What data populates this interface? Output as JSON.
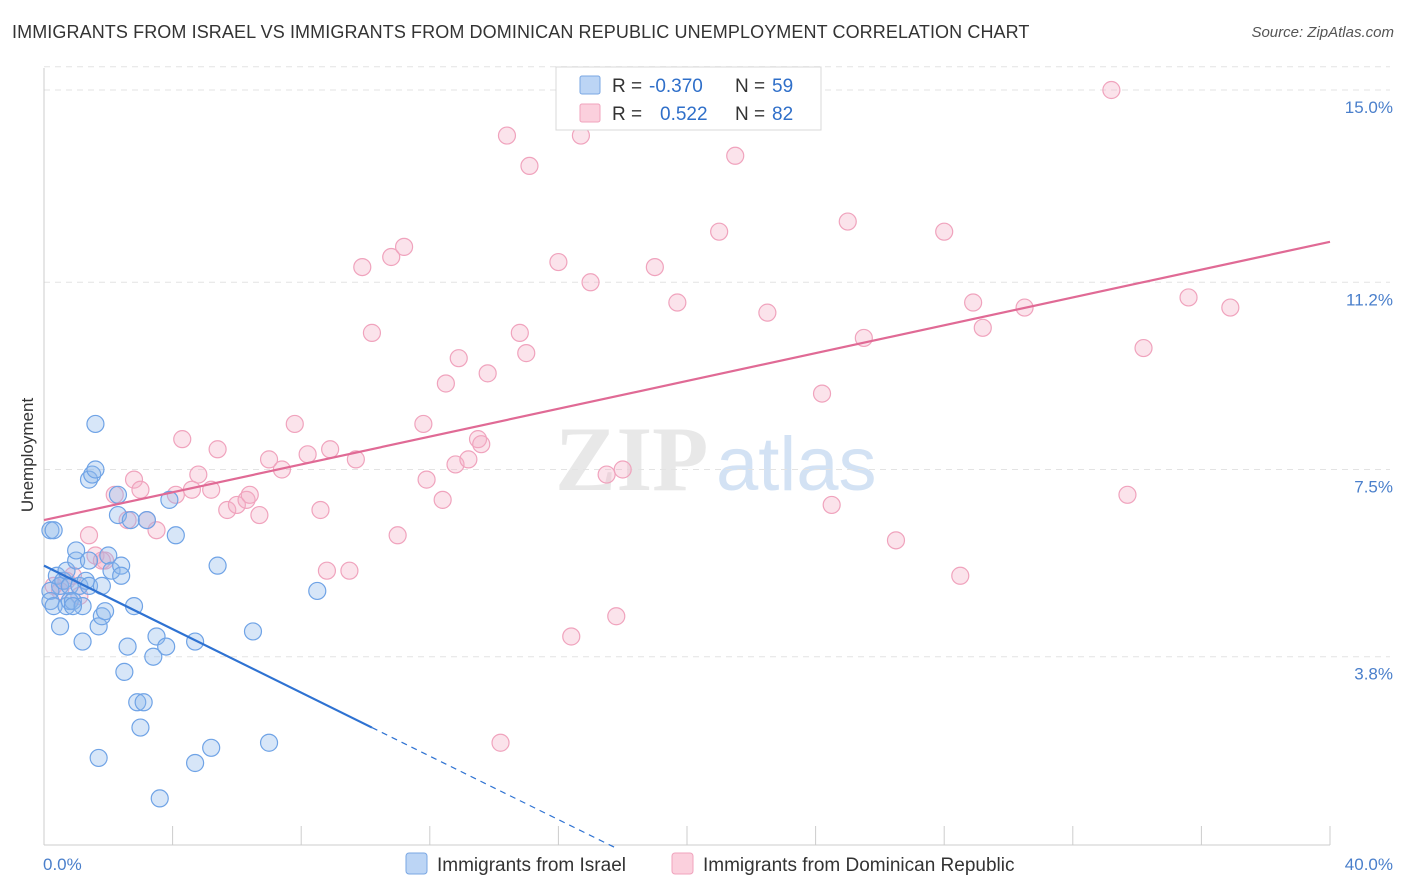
{
  "title": "IMMIGRANTS FROM ISRAEL VS IMMIGRANTS FROM DOMINICAN REPUBLIC UNEMPLOYMENT CORRELATION CHART",
  "source": "Source: ZipAtlas.com",
  "watermark": {
    "zip": "ZIP",
    "atlas": "atlas"
  },
  "legend_top": [
    {
      "r_label": "R = ",
      "r_value": "-0.370",
      "n_label": "N = ",
      "n_value": "59"
    },
    {
      "r_label": "R = ",
      "r_value": "0.522",
      "n_label": "N = ",
      "n_value": "82"
    }
  ],
  "legend_bottom": [
    "Immigrants from Israel",
    "Immigrants from Dominican Republic"
  ],
  "chart_data": {
    "type": "scatter",
    "title": "IMMIGRANTS FROM ISRAEL VS IMMIGRANTS FROM DOMINICAN REPUBLIC UNEMPLOYMENT CORRELATION CHART",
    "xlabel": "",
    "ylabel": "Unemployment",
    "xlim": [
      0,
      40
    ],
    "ylim": [
      0,
      15.5
    ],
    "x_tick_labels": [
      "0.0%",
      "40.0%"
    ],
    "y_ticks": [
      3.8,
      7.5,
      11.2,
      15.0
    ],
    "y_tick_labels": [
      "3.8%",
      "7.5%",
      "11.2%",
      "15.0%"
    ],
    "grid": "horizontal dashed",
    "legend_placement": "top-center and bottom",
    "colors": {
      "israel": "#6fa3e6",
      "israel_line": "#2e72d2",
      "dominican": "#f0a3bd",
      "dominican_line": "#e06a95"
    },
    "series": [
      {
        "name": "Immigrants from Israel",
        "r": -0.37,
        "n": 59,
        "trend": {
          "x0": 0,
          "y0": 5.6,
          "x1": 10.2,
          "y1": 2.4,
          "dashed_to_x": 17.8
        },
        "points": [
          [
            0.2,
            6.3
          ],
          [
            0.3,
            6.3
          ],
          [
            0.4,
            5.4
          ],
          [
            0.5,
            5.2
          ],
          [
            0.2,
            5.1
          ],
          [
            0.2,
            4.9
          ],
          [
            0.3,
            4.8
          ],
          [
            0.5,
            4.4
          ],
          [
            0.6,
            5.3
          ],
          [
            0.7,
            5.5
          ],
          [
            0.7,
            4.8
          ],
          [
            0.8,
            4.9
          ],
          [
            0.8,
            5.2
          ],
          [
            0.9,
            4.9
          ],
          [
            1.0,
            5.7
          ],
          [
            1.0,
            5.9
          ],
          [
            1.1,
            5.2
          ],
          [
            1.2,
            4.8
          ],
          [
            1.2,
            4.1
          ],
          [
            1.3,
            5.3
          ],
          [
            1.4,
            5.2
          ],
          [
            1.4,
            5.7
          ],
          [
            1.4,
            7.3
          ],
          [
            1.5,
            7.4
          ],
          [
            1.6,
            8.4
          ],
          [
            1.6,
            7.5
          ],
          [
            1.7,
            4.4
          ],
          [
            1.8,
            4.6
          ],
          [
            1.8,
            5.2
          ],
          [
            1.9,
            4.7
          ],
          [
            2.0,
            5.8
          ],
          [
            2.1,
            5.5
          ],
          [
            2.3,
            6.6
          ],
          [
            2.3,
            7.0
          ],
          [
            2.4,
            5.6
          ],
          [
            2.4,
            5.4
          ],
          [
            2.5,
            3.5
          ],
          [
            2.6,
            4.0
          ],
          [
            2.7,
            6.5
          ],
          [
            2.8,
            4.8
          ],
          [
            2.9,
            2.9
          ],
          [
            3.0,
            2.4
          ],
          [
            3.1,
            2.9
          ],
          [
            3.2,
            6.5
          ],
          [
            3.4,
            3.8
          ],
          [
            3.5,
            4.2
          ],
          [
            3.6,
            1.0
          ],
          [
            3.8,
            4.0
          ],
          [
            3.9,
            6.9
          ],
          [
            4.1,
            6.2
          ],
          [
            4.7,
            4.1
          ],
          [
            4.7,
            1.7
          ],
          [
            5.2,
            2.0
          ],
          [
            5.4,
            5.6
          ],
          [
            6.5,
            4.3
          ],
          [
            7.0,
            2.1
          ],
          [
            8.5,
            5.1
          ],
          [
            1.7,
            1.8
          ],
          [
            0.9,
            4.8
          ]
        ]
      },
      {
        "name": "Immigrants from Dominican Republic",
        "r": 0.522,
        "n": 82,
        "trend": {
          "x0": 0,
          "y0": 6.5,
          "x1": 40,
          "y1": 12.0
        },
        "points": [
          [
            0.3,
            5.2
          ],
          [
            0.5,
            5.1
          ],
          [
            0.7,
            5.3
          ],
          [
            0.9,
            5.4
          ],
          [
            1.1,
            5.0
          ],
          [
            1.4,
            6.2
          ],
          [
            1.6,
            5.8
          ],
          [
            1.9,
            5.7
          ],
          [
            2.2,
            7.0
          ],
          [
            2.6,
            6.5
          ],
          [
            2.8,
            7.3
          ],
          [
            3.0,
            7.1
          ],
          [
            3.2,
            6.5
          ],
          [
            3.5,
            6.3
          ],
          [
            4.1,
            7.0
          ],
          [
            4.3,
            8.1
          ],
          [
            4.6,
            7.1
          ],
          [
            4.8,
            7.4
          ],
          [
            5.2,
            7.1
          ],
          [
            5.4,
            7.9
          ],
          [
            5.7,
            6.7
          ],
          [
            6.0,
            6.8
          ],
          [
            6.3,
            6.9
          ],
          [
            6.4,
            7.0
          ],
          [
            6.7,
            6.6
          ],
          [
            7.0,
            7.7
          ],
          [
            7.4,
            7.5
          ],
          [
            7.8,
            8.4
          ],
          [
            8.2,
            7.8
          ],
          [
            8.6,
            6.7
          ],
          [
            8.8,
            5.5
          ],
          [
            8.9,
            7.9
          ],
          [
            9.5,
            5.5
          ],
          [
            9.7,
            7.7
          ],
          [
            9.9,
            11.5
          ],
          [
            10.2,
            10.2
          ],
          [
            10.8,
            11.7
          ],
          [
            11.0,
            6.2
          ],
          [
            11.2,
            11.9
          ],
          [
            11.8,
            8.4
          ],
          [
            11.9,
            7.3
          ],
          [
            12.4,
            6.9
          ],
          [
            12.5,
            9.2
          ],
          [
            12.8,
            7.6
          ],
          [
            12.9,
            9.7
          ],
          [
            13.2,
            7.7
          ],
          [
            13.5,
            8.1
          ],
          [
            13.6,
            8.0
          ],
          [
            13.8,
            9.4
          ],
          [
            14.2,
            2.1
          ],
          [
            14.4,
            14.1
          ],
          [
            14.8,
            10.2
          ],
          [
            15.0,
            9.8
          ],
          [
            15.1,
            13.5
          ],
          [
            16.0,
            11.6
          ],
          [
            16.4,
            4.2
          ],
          [
            16.7,
            14.1
          ],
          [
            17.0,
            11.2
          ],
          [
            17.5,
            7.4
          ],
          [
            17.8,
            4.6
          ],
          [
            18.0,
            7.5
          ],
          [
            19.0,
            11.5
          ],
          [
            19.7,
            10.8
          ],
          [
            21.0,
            12.2
          ],
          [
            21.5,
            13.7
          ],
          [
            22.5,
            10.6
          ],
          [
            24.2,
            9.0
          ],
          [
            24.5,
            6.8
          ],
          [
            25.0,
            12.4
          ],
          [
            25.5,
            10.1
          ],
          [
            26.5,
            6.1
          ],
          [
            28.0,
            12.2
          ],
          [
            28.5,
            5.4
          ],
          [
            28.9,
            10.8
          ],
          [
            29.2,
            10.3
          ],
          [
            30.5,
            10.7
          ],
          [
            33.2,
            15.0
          ],
          [
            33.7,
            7.0
          ],
          [
            34.2,
            9.9
          ],
          [
            35.6,
            10.9
          ],
          [
            36.9,
            10.7
          ],
          [
            1.8,
            5.7
          ]
        ]
      }
    ]
  }
}
